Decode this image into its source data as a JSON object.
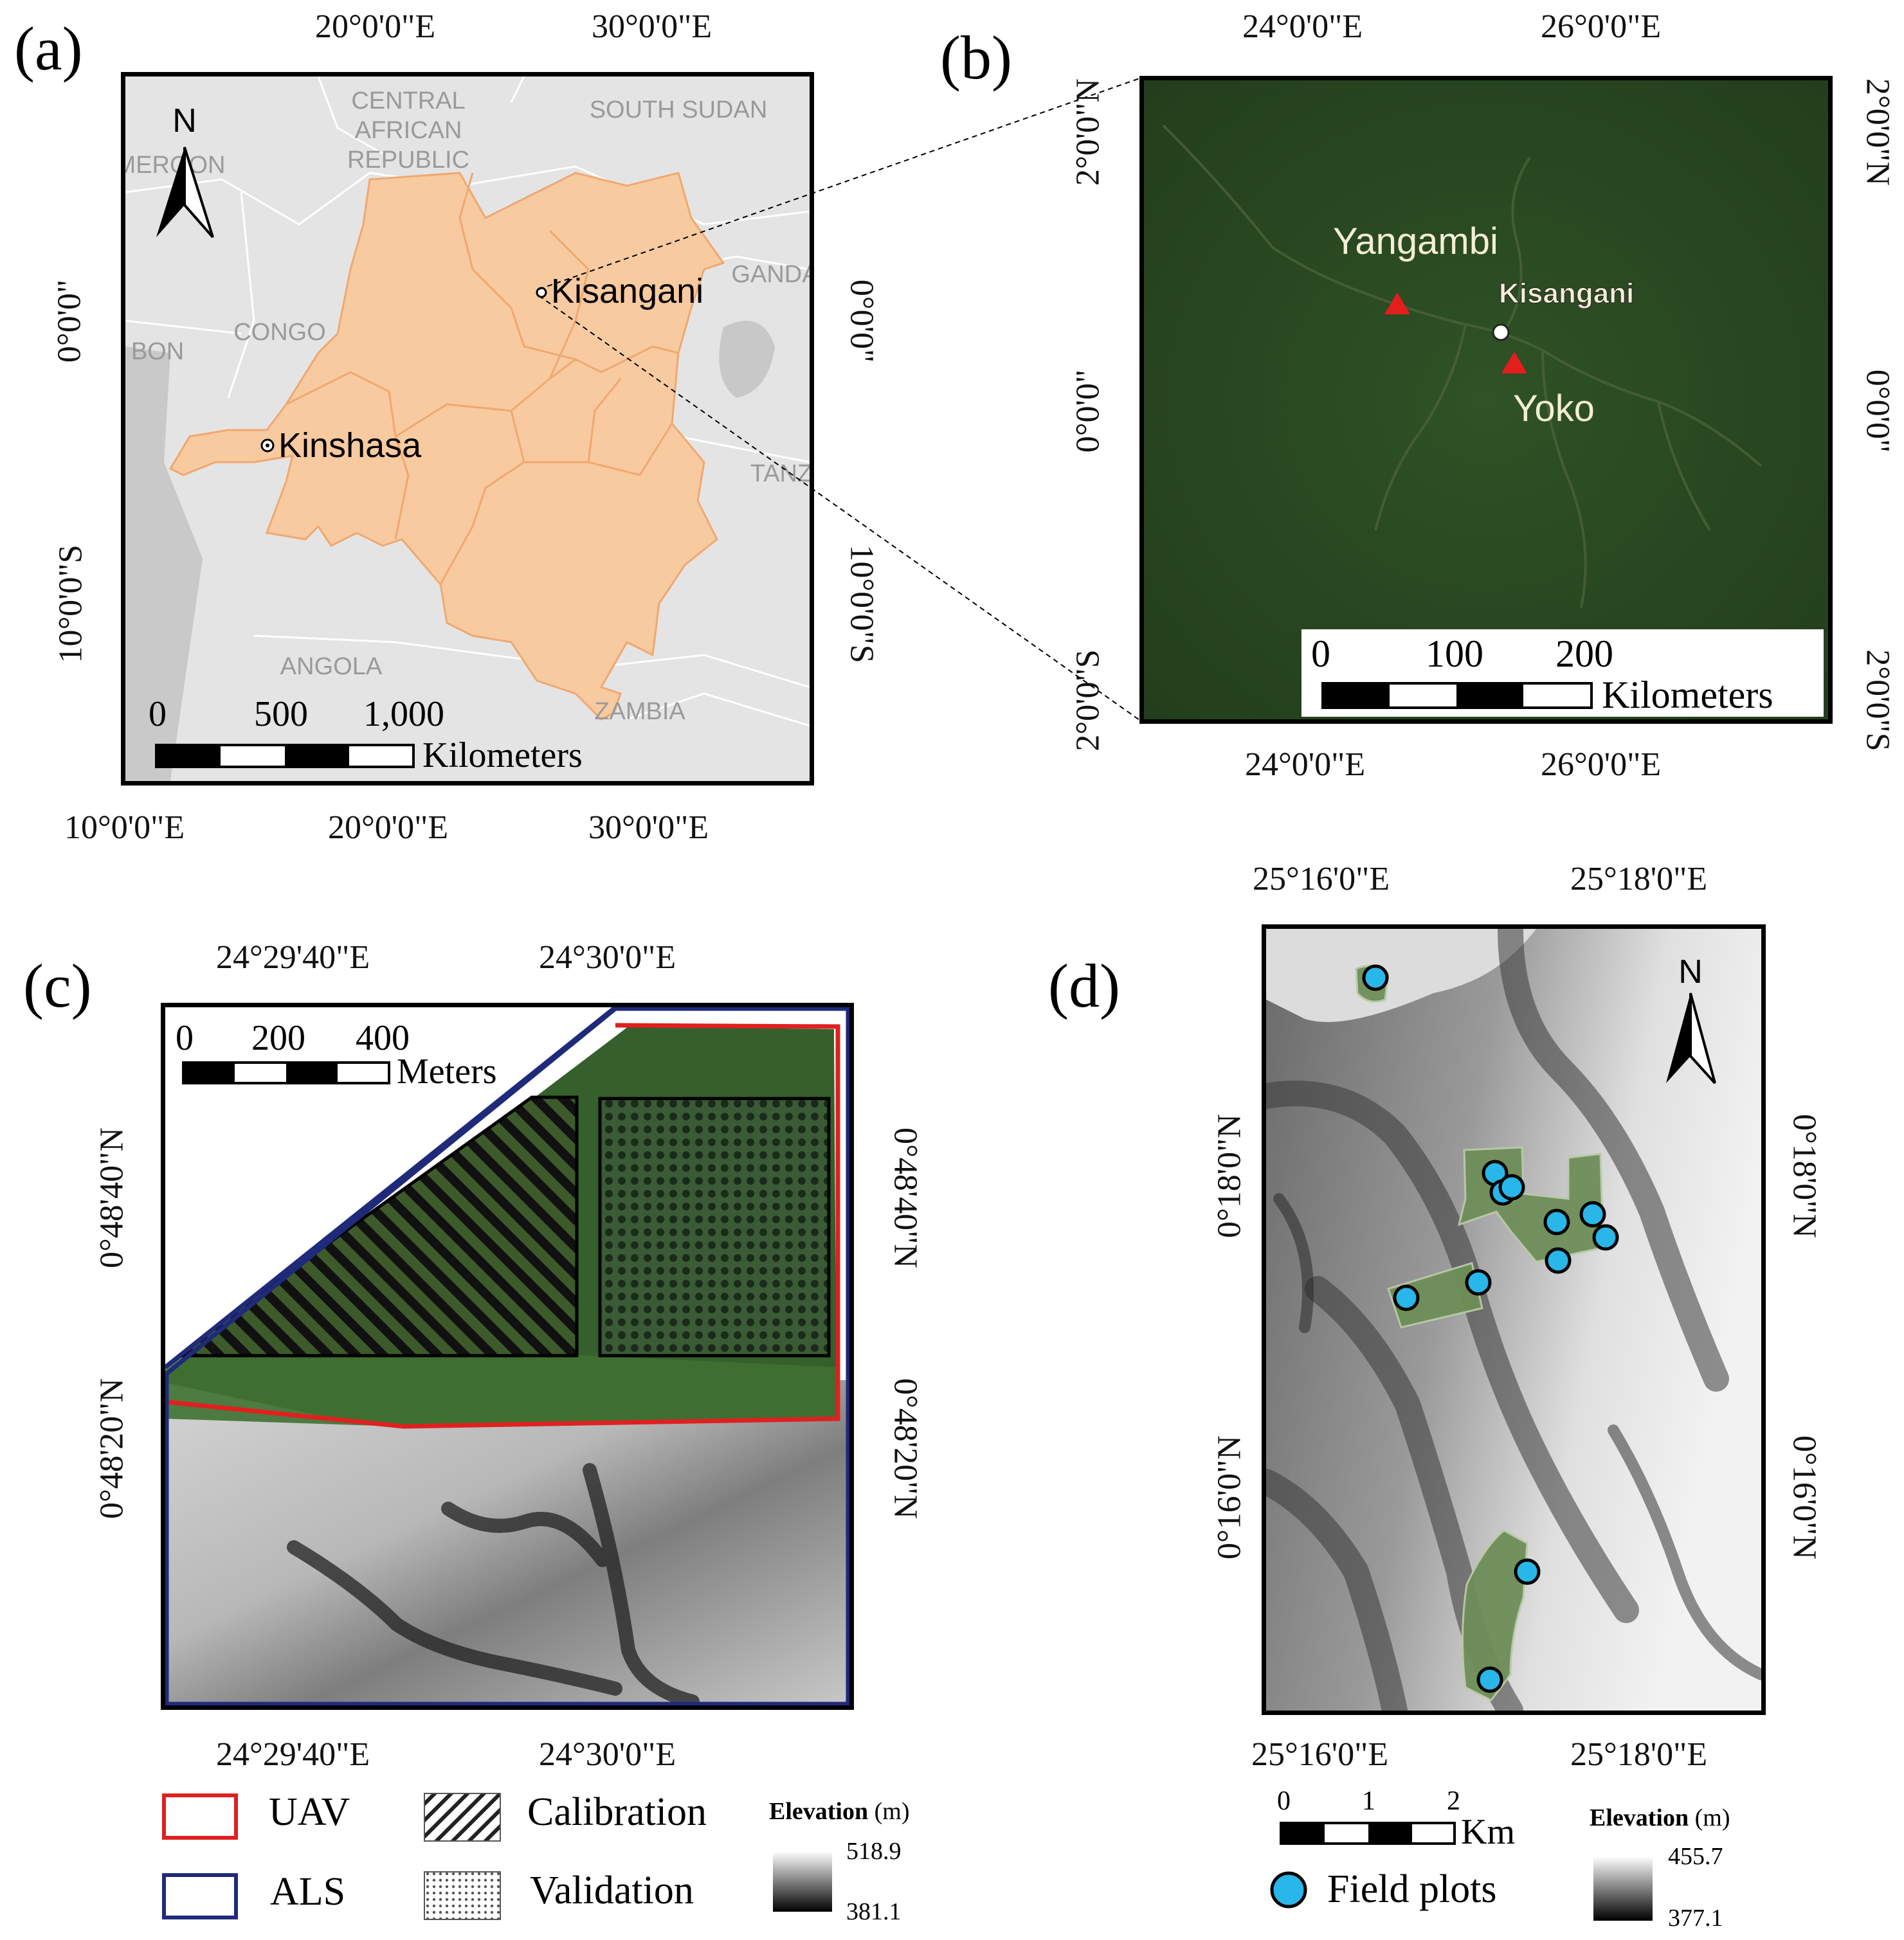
{
  "panels": {
    "a": {
      "letter": "(a)",
      "top_ticks": [
        "20°0'0\"E",
        "30°0'0\"E"
      ],
      "bottom_ticks": [
        "10°0'0\"E",
        "20°0'0\"E",
        "30°0'0\"E"
      ],
      "left_ticks": [
        "0°0'0\"",
        "10°0'0\"S"
      ],
      "right_ticks": [
        "0°0'0\"",
        "10°0'0\"S"
      ],
      "countries": [
        "CENTRAL",
        "AFRICAN",
        "REPUBLIC",
        "SOUTH SUDAN",
        "MEROON",
        "CONGO",
        "BON",
        "GANDA",
        "TANZ",
        "ANGOLA",
        "ZAMBIA"
      ],
      "cities": [
        "Kisangani",
        "Kinshasa"
      ],
      "north_label": "N",
      "scale": {
        "labels": [
          "0",
          "500",
          "1,000"
        ],
        "unit": "Kilometers"
      }
    },
    "b": {
      "letter": "(b)",
      "top_ticks": [
        "24°0'0\"E",
        "26°0'0\"E"
      ],
      "bottom_ticks": [
        "24°0'0\"E",
        "26°0'0\"E"
      ],
      "left_ticks": [
        "2°0'0\"N",
        "0°0'0\"",
        "2°0'0\"S"
      ],
      "right_ticks": [
        "2°0'0\"N",
        "0°0'0\"",
        "2°0'0\"S"
      ],
      "places": [
        "Yangambi",
        "Kisangani",
        "Yoko"
      ],
      "scale": {
        "labels": [
          "0",
          "100",
          "200"
        ],
        "unit": "Kilometers"
      }
    },
    "c": {
      "letter": "(c)",
      "top_ticks": [
        "24°29'40\"E",
        "24°30'0\"E"
      ],
      "bottom_ticks": [
        "24°29'40\"E",
        "24°30'0\"E"
      ],
      "left_ticks": [
        "0°48'40\"N",
        "0°48'20\"N"
      ],
      "right_ticks": [
        "0°48'40\"N",
        "0°48'20\"N"
      ],
      "scale": {
        "labels": [
          "0",
          "200",
          "400"
        ],
        "unit": "Meters"
      },
      "legend": {
        "uav": "UAV",
        "als": "ALS",
        "calibration": "Calibration",
        "validation": "Validation",
        "elev_title": "Elevation",
        "elev_unit": "(m)",
        "elev_max": "518.9",
        "elev_min": "381.1",
        "uav_color": "#e02020",
        "als_color": "#1f2a7a"
      }
    },
    "d": {
      "letter": "(d)",
      "top_ticks": [
        "25°16'0\"E",
        "25°18'0\"E"
      ],
      "bottom_ticks": [
        "25°16'0\"E",
        "25°18'0\"E"
      ],
      "left_ticks": [
        "0°18'0\"N",
        "0°16'0\"N"
      ],
      "right_ticks": [
        "0°18'0\"N",
        "0°16'0\"N"
      ],
      "north_label": "N",
      "scale": {
        "labels": [
          "0",
          "1",
          "2"
        ],
        "unit": "Km"
      },
      "legend": {
        "field_plots": "Field plots",
        "elev_title": "Elevation",
        "elev_unit": "(m)",
        "elev_max": "455.7",
        "elev_min": "377.1",
        "plot_color": "#29b6e8"
      }
    }
  }
}
